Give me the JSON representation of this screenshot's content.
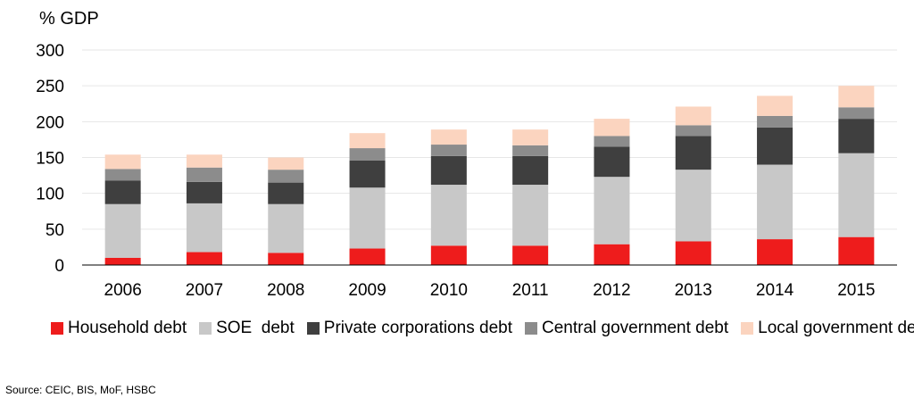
{
  "chart_data": {
    "type": "bar",
    "stacked": true,
    "title": "",
    "ylabel": "% GDP",
    "xlabel": "",
    "ylim": [
      0,
      300
    ],
    "yticks": [
      0,
      50,
      100,
      150,
      200,
      250,
      300
    ],
    "grid": true,
    "legend_position": "bottom",
    "categories": [
      "2006",
      "2007",
      "2008",
      "2009",
      "2010",
      "2011",
      "2012",
      "2013",
      "2014",
      "2015"
    ],
    "series": [
      {
        "name": "Household debt",
        "color": "#ee1c1c",
        "values": [
          10,
          18,
          17,
          23,
          27,
          27,
          29,
          33,
          36,
          39
        ]
      },
      {
        "name": "SOE  debt",
        "color": "#c8c8c8",
        "values": [
          75,
          68,
          68,
          85,
          85,
          85,
          94,
          100,
          104,
          117
        ]
      },
      {
        "name": "Private corporations debt",
        "color": "#3f3f3f",
        "values": [
          33,
          30,
          30,
          38,
          40,
          40,
          42,
          47,
          52,
          48
        ]
      },
      {
        "name": "Central government debt",
        "color": "#8c8c8c",
        "values": [
          16,
          20,
          18,
          17,
          16,
          15,
          15,
          15,
          16,
          16
        ]
      },
      {
        "name": "Local government debt",
        "color": "#fbd4bf",
        "values": [
          20,
          18,
          17,
          21,
          21,
          22,
          24,
          26,
          28,
          30
        ]
      }
    ]
  },
  "source": "Source: CEIC, BIS, MoF, HSBC"
}
